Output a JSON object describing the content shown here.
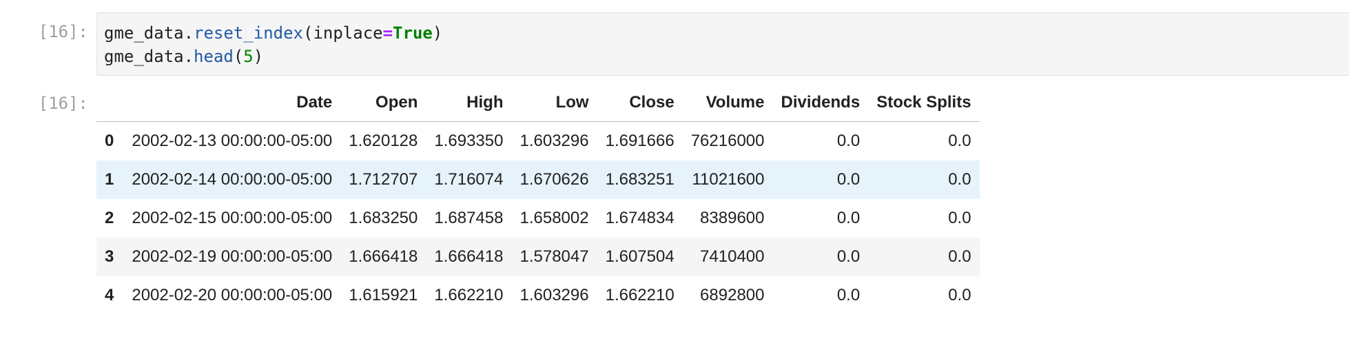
{
  "input_cell": {
    "prompt": "[16]:",
    "code_lines": [
      [
        {
          "text": "gme_data.",
          "kind": "plain"
        },
        {
          "text": "reset_index",
          "kind": "method"
        },
        {
          "text": "(inplace",
          "kind": "plain"
        },
        {
          "text": "=",
          "kind": "op"
        },
        {
          "text": "True",
          "kind": "kw"
        },
        {
          "text": ")",
          "kind": "plain"
        }
      ],
      [
        {
          "text": "gme_data.",
          "kind": "plain"
        },
        {
          "text": "head",
          "kind": "method"
        },
        {
          "text": "(",
          "kind": "plain"
        },
        {
          "text": "5",
          "kind": "num"
        },
        {
          "text": ")",
          "kind": "plain"
        }
      ]
    ]
  },
  "output_cell": {
    "prompt": "[16]:",
    "table": {
      "columns": [
        "",
        "Date",
        "Open",
        "High",
        "Low",
        "Close",
        "Volume",
        "Dividends",
        "Stock Splits"
      ],
      "rows": [
        {
          "index": "0",
          "cells": [
            "2002-02-13 00:00:00-05:00",
            "1.620128",
            "1.693350",
            "1.603296",
            "1.691666",
            "76216000",
            "0.0",
            "0.0"
          ]
        },
        {
          "index": "1",
          "cells": [
            "2002-02-14 00:00:00-05:00",
            "1.712707",
            "1.716074",
            "1.670626",
            "1.683251",
            "11021600",
            "0.0",
            "0.0"
          ]
        },
        {
          "index": "2",
          "cells": [
            "2002-02-15 00:00:00-05:00",
            "1.683250",
            "1.687458",
            "1.658002",
            "1.674834",
            "8389600",
            "0.0",
            "0.0"
          ]
        },
        {
          "index": "3",
          "cells": [
            "2002-02-19 00:00:00-05:00",
            "1.666418",
            "1.666418",
            "1.578047",
            "1.607504",
            "7410400",
            "0.0",
            "0.0"
          ]
        },
        {
          "index": "4",
          "cells": [
            "2002-02-20 00:00:00-05:00",
            "1.615921",
            "1.662210",
            "1.603296",
            "1.662210",
            "6892800",
            "0.0",
            "0.0"
          ]
        }
      ],
      "hovered_row": 1
    }
  },
  "colors": {
    "editor_bg": "#f5f5f5",
    "stripe_bg": "#f5f5f5",
    "hover_bg": "#e6f3fb",
    "method": "#1f5aa6",
    "keyword": "#008000",
    "operator": "#aa22ff",
    "prompt": "#a0a0a0"
  }
}
